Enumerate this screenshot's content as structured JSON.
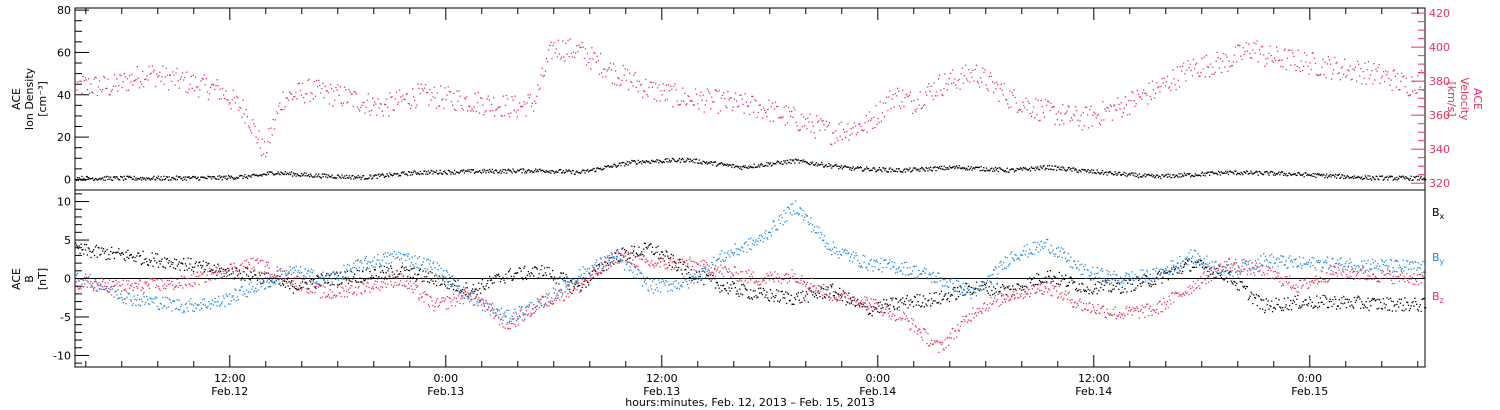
{
  "chart_data": [
    {
      "type": "scatter",
      "panel": "top",
      "ylabel_left_lines": [
        "ACE",
        "Ion Density",
        "[cm⁻³]"
      ],
      "ylabel_right_lines": [
        "ACE",
        "Velocity",
        "[km/s]"
      ],
      "ylim_left": [
        -5,
        81
      ],
      "ylim_right": [
        316,
        423
      ],
      "yticks_left": [
        "0",
        "20",
        "40",
        "60",
        "80"
      ],
      "yticks_left_values": [
        0,
        20,
        40,
        60,
        80
      ],
      "yticks_right": [
        "320",
        "340",
        "360",
        "380",
        "400",
        "420"
      ],
      "yticks_right_values": [
        320,
        340,
        360,
        380,
        400,
        420
      ],
      "series": [
        {
          "axis": "left",
          "color": "#000000",
          "x": [
            0,
            4,
            8,
            10,
            11,
            13,
            16,
            19,
            22,
            26,
            28,
            31,
            34,
            37,
            40,
            43,
            46,
            49,
            52,
            54,
            57,
            60,
            63,
            64,
            67,
            70,
            72,
            75
          ],
          "y": [
            0.8,
            0.8,
            1.0,
            1.8,
            3.5,
            2.2,
            1.2,
            3.5,
            4.0,
            4.5,
            3.5,
            8.5,
            9.5,
            6.0,
            9.0,
            5.5,
            4.5,
            6.0,
            4.5,
            6.0,
            3.5,
            1.5,
            3.0,
            3.5,
            3.0,
            1.8,
            1.0,
            0.8
          ]
        },
        {
          "axis": "right",
          "color": "#e8325a",
          "x": [
            0,
            2,
            4,
            6,
            8,
            9.5,
            10.5,
            11.5,
            13,
            15,
            17,
            19,
            21,
            23,
            24.5,
            25.5,
            26.5,
            28,
            30,
            32,
            34,
            36,
            38,
            40,
            42,
            44,
            45.5,
            46.5,
            48,
            50,
            52,
            54,
            56,
            58,
            60,
            62,
            64,
            65.5,
            66,
            68,
            70,
            72,
            73,
            74,
            75
          ],
          "y": [
            378,
            377,
            385,
            380,
            375,
            362,
            338,
            370,
            375,
            371,
            365,
            372,
            370,
            367,
            365,
            368,
            400,
            398,
            385,
            375,
            370,
            368,
            365,
            358,
            350,
            355,
            372,
            368,
            378,
            385,
            370,
            362,
            358,
            365,
            375,
            388,
            392,
            400,
            395,
            392,
            388,
            385,
            382,
            378,
            382
          ]
        }
      ]
    },
    {
      "type": "scatter",
      "panel": "bottom",
      "ylabel_lines": [
        "ACE",
        "B",
        "[nT]"
      ],
      "ylim": [
        -11.5,
        11.5
      ],
      "yticks": [
        "-10",
        "-5",
        "0",
        "5",
        "10"
      ],
      "yticks_values": [
        -10,
        -5,
        0,
        5,
        10
      ],
      "zero_line": true,
      "x_ticks_hours": [
        12,
        24,
        36,
        48,
        60,
        72
      ],
      "x_ticks_time": [
        "12:00",
        "0:00",
        "12:00",
        "0:00",
        "12:00",
        "0:00"
      ],
      "x_ticks_date": [
        "Feb.12",
        "Feb.13",
        "Feb.13",
        "Feb.14",
        "Feb.14",
        "Feb.15"
      ],
      "xlim_hours": [
        3.4,
        78.4
      ],
      "xlabel": "hours:minutes, Feb. 12, 2013 – Feb. 15, 2013",
      "legend": "right",
      "series": [
        {
          "name": "Bx",
          "name_main": "B",
          "name_sub": "x",
          "color": "#000000",
          "x": [
            0,
            3,
            6,
            8,
            10,
            12,
            14,
            16,
            18,
            20,
            22,
            24,
            26,
            28,
            30,
            32,
            34,
            36,
            38,
            40,
            42,
            44,
            46,
            48,
            50,
            52,
            54,
            56,
            58,
            60,
            62,
            64,
            66,
            68,
            70,
            72,
            74,
            75
          ],
          "y": [
            3.8,
            3.0,
            2.0,
            1.0,
            0.5,
            -1.0,
            0.0,
            0.5,
            1.0,
            0.0,
            -1.5,
            0.5,
            1.0,
            -1.0,
            3.0,
            4.0,
            1.0,
            -1.0,
            -2.0,
            -2.5,
            -1.5,
            -4.0,
            -3.0,
            -2.5,
            -1.0,
            -1.5,
            0.5,
            -1.0,
            -1.0,
            0.0,
            2.0,
            0.5,
            -3.5,
            -3.0,
            -3.0,
            -3.2,
            -3.3,
            -3.4
          ]
        },
        {
          "name": "By",
          "name_main": "B",
          "name_sub": "y",
          "color": "#1e88e5",
          "x": [
            0,
            3,
            6,
            8,
            10,
            12,
            14,
            16,
            18,
            20,
            22,
            24,
            26,
            28,
            30,
            32,
            34,
            36,
            38,
            40,
            42,
            44,
            46,
            48,
            50,
            52,
            54,
            56,
            58,
            60,
            62,
            64,
            66,
            68,
            70,
            72,
            74,
            75
          ],
          "y": [
            0.5,
            -2.5,
            -3.5,
            -3.0,
            -1.0,
            1.0,
            0.0,
            2.0,
            3.0,
            1.5,
            -2.5,
            -5.0,
            -3.0,
            0.5,
            3.0,
            -1.0,
            -0.5,
            3.0,
            5.0,
            9.5,
            4.0,
            2.0,
            1.5,
            0.0,
            -2.0,
            3.0,
            4.5,
            1.0,
            0.0,
            0.5,
            3.0,
            1.0,
            2.5,
            2.0,
            2.0,
            1.8,
            1.6,
            1.5
          ]
        },
        {
          "name": "Bz",
          "name_main": "B",
          "name_sub": "z",
          "color": "#e8325a",
          "x": [
            0,
            3,
            6,
            8,
            10,
            12,
            14,
            16,
            18,
            20,
            22,
            24,
            26,
            28,
            30,
            32,
            34,
            36,
            38,
            40,
            42,
            44,
            46,
            48,
            50,
            52,
            54,
            56,
            58,
            60,
            62,
            64,
            66,
            68,
            70,
            72,
            74,
            75
          ],
          "y": [
            -0.5,
            -1.0,
            -0.5,
            1.0,
            2.0,
            0.0,
            -2.0,
            -1.0,
            0.0,
            -3.5,
            -2.0,
            -6.0,
            -3.0,
            -1.0,
            3.0,
            2.0,
            2.0,
            1.0,
            0.0,
            0.5,
            -2.0,
            -3.0,
            -5.0,
            -9.0,
            -4.0,
            -2.0,
            -1.0,
            -3.5,
            -4.5,
            -4.0,
            -1.0,
            2.0,
            1.0,
            -1.0,
            1.0,
            0.5,
            0.2,
            0.0
          ]
        }
      ]
    }
  ]
}
